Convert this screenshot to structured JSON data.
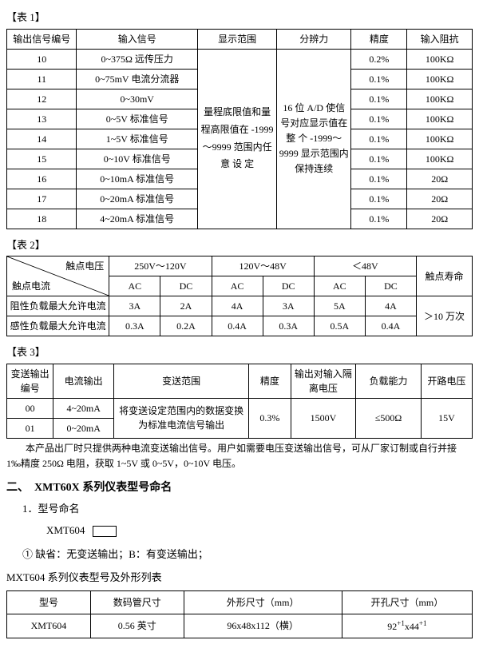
{
  "table1": {
    "label": "【表 1】",
    "headers": [
      "输出信号编号",
      "输入信号",
      "显示范围",
      "分辨力",
      "精度",
      "输入阻抗"
    ],
    "display_range_merged": "量程底限值和量程高限值在 -1999～9999 范围内任意 设 定",
    "resolution_merged": "16 位 A/D 使信号对应显示值在整 个 -1999～9999 显示范围内保持连续",
    "rows": [
      {
        "id": "10",
        "sig": "0~375Ω 远传压力",
        "prec": "0.2%",
        "imp": "100KΩ"
      },
      {
        "id": "11",
        "sig": "0~75mV 电流分流器",
        "prec": "0.1%",
        "imp": "100KΩ"
      },
      {
        "id": "12",
        "sig": "0~30mV",
        "prec": "0.1%",
        "imp": "100KΩ"
      },
      {
        "id": "13",
        "sig": "0~5V 标准信号",
        "prec": "0.1%",
        "imp": "100KΩ"
      },
      {
        "id": "14",
        "sig": "1~5V 标准信号",
        "prec": "0.1%",
        "imp": "100KΩ"
      },
      {
        "id": "15",
        "sig": "0~10V 标准信号",
        "prec": "0.1%",
        "imp": "100KΩ"
      },
      {
        "id": "16",
        "sig": "0~10mA 标准信号",
        "prec": "0.1%",
        "imp": "20Ω"
      },
      {
        "id": "17",
        "sig": "0~20mA 标准信号",
        "prec": "0.1%",
        "imp": "20Ω"
      },
      {
        "id": "18",
        "sig": "4~20mA 标准信号",
        "prec": "0.1%",
        "imp": "20Ω"
      }
    ]
  },
  "table2": {
    "label": "【表 2】",
    "diag_upper": "触点电压",
    "diag_lower": "触点电流",
    "volt_ranges": [
      "250V～120V",
      "120V～48V",
      "＜48V"
    ],
    "life_header": "触点寿命",
    "acdc": [
      "AC",
      "DC",
      "AC",
      "DC",
      "AC",
      "DC"
    ],
    "row_res_label": "阻性负载最大允许电流",
    "row_res": [
      "3A",
      "2A",
      "4A",
      "3A",
      "5A",
      "4A"
    ],
    "row_ind_label": "感性负载最大允许电流",
    "row_ind": [
      "0.3A",
      "0.2A",
      "0.4A",
      "0.3A",
      "0.5A",
      "0.4A"
    ],
    "life_val": "＞10 万次"
  },
  "table3": {
    "label": "【表 3】",
    "headers": [
      "变送输出编号",
      "电流输出",
      "变送范围",
      "精度",
      "输出对输入隔离电压",
      "负载能力",
      "开路电压"
    ],
    "rows": [
      {
        "id": "00",
        "curr": "4~20mA"
      },
      {
        "id": "01",
        "curr": "0~20mA"
      }
    ],
    "range_merged": "将变送设定范围内的数据变换为标准电流信号输出",
    "prec": "0.3%",
    "iso": "1500V",
    "load": "≤500Ω",
    "open": "15V",
    "note": "本产品出厂时只提供两种电流变送输出信号。用户如需要电压变送输出信号，可从厂家订制或自行并接 1‰精度 250Ω 电阻，获取 1~5V 或 0~5V，0~10V 电压。"
  },
  "section2": {
    "heading": "二、　XMT60X 系列仪表型号命名",
    "sub1": "1．型号命名",
    "model": "XMT604",
    "desc": "① 缺省：无变送输出；B：有变送输出；",
    "series_label": "MXT604 系列仪表型号及外形列表"
  },
  "table4": {
    "headers": [
      "型号",
      "数码管尺寸",
      "外形尺寸（mm）",
      "开孔尺寸（mm）"
    ],
    "row": {
      "model": "XMT604",
      "tube": "0.56 英寸",
      "ext": "96x48x112（横）",
      "hole_html": "92<sup>+1</sup>x44<sup>+1</sup>"
    }
  }
}
